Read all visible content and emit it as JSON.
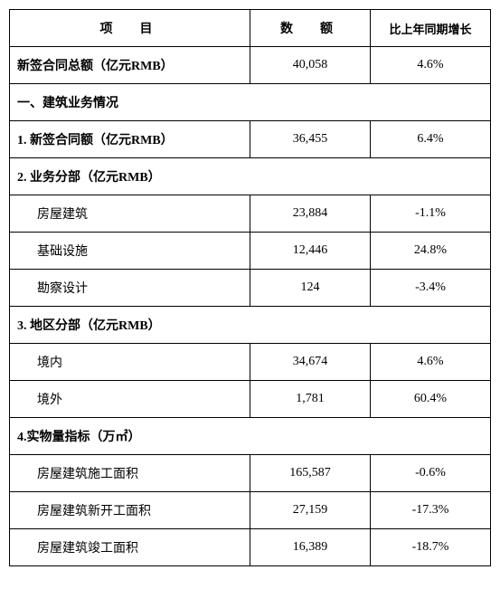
{
  "table": {
    "background_color": "#ffffff",
    "border_color": "#000000",
    "text_color": "#000000",
    "font_family": "SimSun",
    "header": {
      "col1": "项　目",
      "col2": "数　额",
      "col3": "比上年同期增长"
    },
    "rows": [
      {
        "type": "data",
        "bold": true,
        "item": "新签合同总额（亿元RMB）",
        "amount": "40,058",
        "change": "4.6%"
      },
      {
        "type": "section",
        "item": "一、建筑业务情况"
      },
      {
        "type": "data",
        "bold": true,
        "item": "1. 新签合同额（亿元RMB）",
        "amount": "36,455",
        "change": "6.4%"
      },
      {
        "type": "section",
        "item": "2. 业务分部（亿元RMB）"
      },
      {
        "type": "data",
        "indent": true,
        "item": "房屋建筑",
        "amount": "23,884",
        "change": "-1.1%"
      },
      {
        "type": "data",
        "indent": true,
        "item": "基础设施",
        "amount": "12,446",
        "change": "24.8%"
      },
      {
        "type": "data",
        "indent": true,
        "item": "勘察设计",
        "amount": "124",
        "change": "-3.4%"
      },
      {
        "type": "section",
        "item": "3. 地区分部（亿元RMB）"
      },
      {
        "type": "data",
        "indent": true,
        "item": "境内",
        "amount": "34,674",
        "change": "4.6%"
      },
      {
        "type": "data",
        "indent": true,
        "item": "境外",
        "amount": "1,781",
        "change": "60.4%"
      },
      {
        "type": "section",
        "item": "4.实物量指标（万㎡）"
      },
      {
        "type": "data",
        "indent": true,
        "item": "房屋建筑施工面积",
        "amount": "165,587",
        "change": "-0.6%"
      },
      {
        "type": "data",
        "indent": true,
        "item": "房屋建筑新开工面积",
        "amount": "27,159",
        "change": "-17.3%"
      },
      {
        "type": "data",
        "indent": true,
        "item": "房屋建筑竣工面积",
        "amount": "16,389",
        "change": "-18.7%"
      }
    ]
  }
}
